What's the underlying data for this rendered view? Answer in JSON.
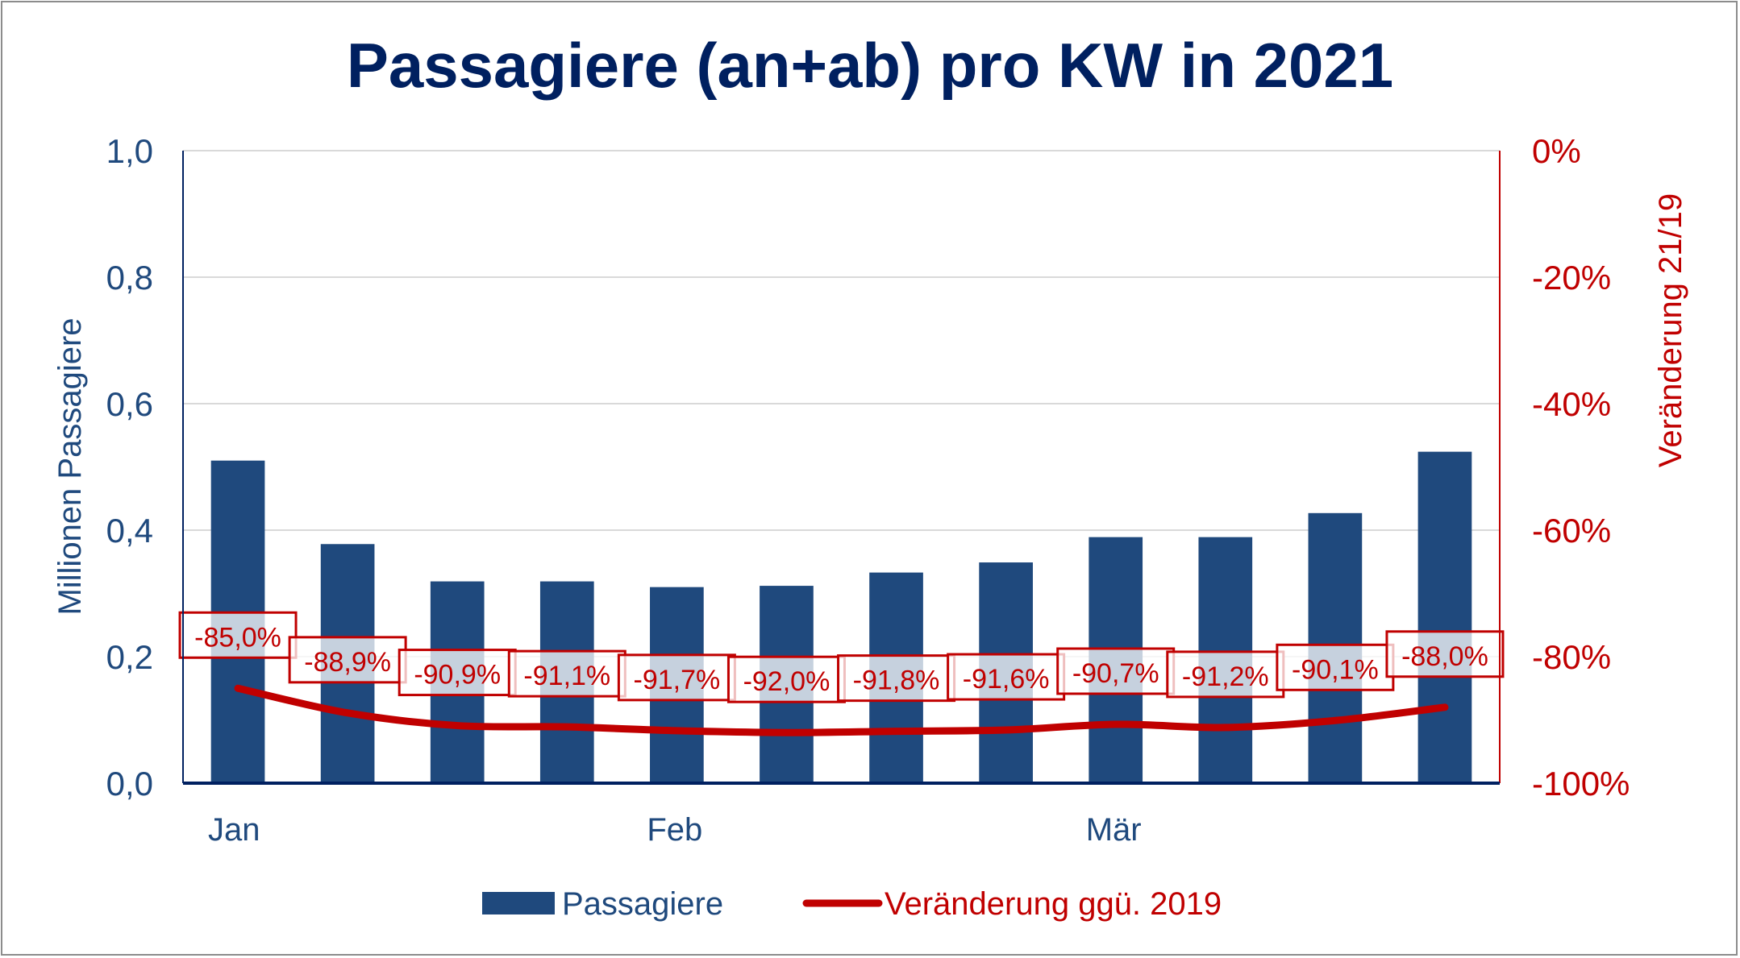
{
  "chart_data": {
    "type": "bar+line",
    "title": "Passagiere (an+ab) pro KW in 2021",
    "ylabel": "Millionen Passagiere",
    "y2label": "Veränderung 21/19",
    "ylim": [
      0,
      1.0
    ],
    "y2lim": [
      -100,
      0
    ],
    "yticks": [
      "0,0",
      "0,2",
      "0,4",
      "0,6",
      "0,8",
      "1,0"
    ],
    "y2ticks": [
      "-100%",
      "-80%",
      "-60%",
      "-40%",
      "-20%",
      "0%"
    ],
    "x_month_labels": [
      {
        "label": "Jan",
        "index": 0
      },
      {
        "label": "Feb",
        "index": 4
      },
      {
        "label": "Mär",
        "index": 8
      }
    ],
    "grid": true,
    "legend_position": "bottom",
    "series": [
      {
        "name": "Passagiere",
        "type": "bar",
        "axis": "left",
        "color": "#1F497D",
        "values": [
          0.51,
          0.378,
          0.319,
          0.319,
          0.31,
          0.312,
          0.333,
          0.349,
          0.389,
          0.389,
          0.427,
          0.524
        ]
      },
      {
        "name": "Veränderung ggü. 2019",
        "type": "line",
        "axis": "right",
        "color": "#C00000",
        "values": [
          -85.0,
          -88.9,
          -90.9,
          -91.1,
          -91.7,
          -92.0,
          -91.8,
          -91.6,
          -90.7,
          -91.2,
          -90.1,
          -88.0
        ],
        "labels": [
          "-85,0%",
          "-88,9%",
          "-90,9%",
          "-91,1%",
          "-91,7%",
          "-92,0%",
          "-91,8%",
          "-91,6%",
          "-90,7%",
          "-91,2%",
          "-90,1%",
          "-88,0%"
        ]
      }
    ],
    "colors": {
      "title": "#002060",
      "left_axis": "#1F497D",
      "right_axis": "#C00000",
      "grid": "#D9D9D9"
    }
  }
}
